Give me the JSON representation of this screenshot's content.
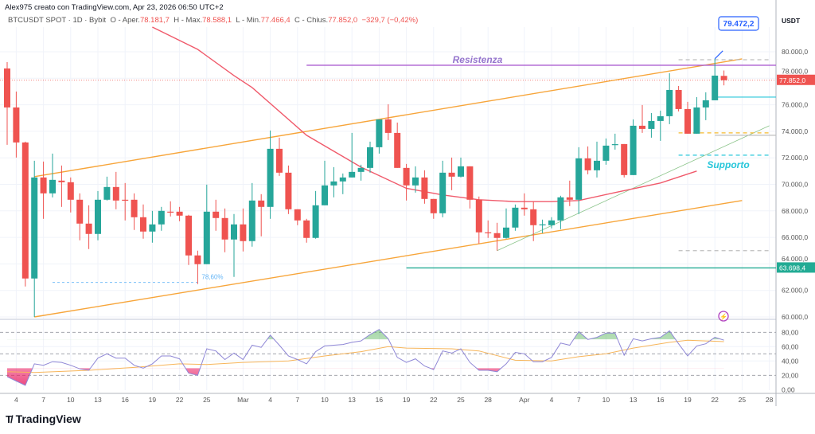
{
  "header": {
    "credit": "Alex975 creato con TradingView.com, Apr 23, 2026 06:50 UTC+2",
    "symbol": "BTCUSDT SPOT · 1D · Bybit",
    "open_label": "O - Aper.",
    "open": "78.181,7",
    "high_label": "H - Max.",
    "high": "78.588,1",
    "low_label": "L - Min.",
    "low": "77.466,4",
    "close_label": "C - Chius.",
    "close": "77.852,0",
    "change": "−329,7 (−0,42%)"
  },
  "logo": {
    "mark": "TV",
    "text": "TradingView"
  },
  "colors": {
    "up": "#26a69a",
    "down": "#ef5350",
    "ma": "#f05a6b",
    "channel": "#f7a53a",
    "resistance": "#ab5cd0",
    "support_text": "#26c6da",
    "support_line": "#22ab94",
    "rsi": "#8f87d6",
    "rsi_ma": "#f7b55a",
    "fib": "#64b5f6"
  },
  "chart_data": {
    "type": "candlestick",
    "currency": "USDT",
    "ylim": [
      59000,
      82500
    ],
    "y_ticks": [
      "80.000,0",
      "78.000,0",
      "76.000,0",
      "74.000,0",
      "72.000,0",
      "70.000,0",
      "68.000,0",
      "66.000,0",
      "64.000,0",
      "62.000,0",
      "60.000,0"
    ],
    "y_tick_values": [
      80000,
      78000,
      76000,
      74000,
      72000,
      70000,
      68000,
      66000,
      64000,
      62000,
      60000
    ],
    "x_ticks": [
      {
        "date": "2026-02-04",
        "label": "4"
      },
      {
        "date": "2026-02-07",
        "label": "7"
      },
      {
        "date": "2026-02-10",
        "label": "10"
      },
      {
        "date": "2026-02-13",
        "label": "13"
      },
      {
        "date": "2026-02-16",
        "label": "16"
      },
      {
        "date": "2026-02-19",
        "label": "19"
      },
      {
        "date": "2026-02-22",
        "label": "22"
      },
      {
        "date": "2026-02-25",
        "label": "25"
      },
      {
        "date": "2026-03-01",
        "label": "Mar"
      },
      {
        "date": "2026-03-04",
        "label": "4"
      },
      {
        "date": "2026-03-07",
        "label": "7"
      },
      {
        "date": "2026-03-10",
        "label": "10"
      },
      {
        "date": "2026-03-13",
        "label": "13"
      },
      {
        "date": "2026-03-16",
        "label": "16"
      },
      {
        "date": "2026-03-19",
        "label": "19"
      },
      {
        "date": "2026-03-22",
        "label": "22"
      },
      {
        "date": "2026-03-25",
        "label": "25"
      },
      {
        "date": "2026-03-28",
        "label": "28"
      },
      {
        "date": "2026-04-01",
        "label": "Apr"
      },
      {
        "date": "2026-04-04",
        "label": "4"
      },
      {
        "date": "2026-04-07",
        "label": "7"
      },
      {
        "date": "2026-04-10",
        "label": "10"
      },
      {
        "date": "2026-04-13",
        "label": "13"
      },
      {
        "date": "2026-04-16",
        "label": "16"
      },
      {
        "date": "2026-04-19",
        "label": "19"
      },
      {
        "date": "2026-04-22",
        "label": "22"
      },
      {
        "date": "2026-04-25",
        "label": "25"
      },
      {
        "date": "2026-04-28",
        "label": "28"
      }
    ],
    "candles_columns": [
      "date",
      "open",
      "high",
      "low",
      "close"
    ],
    "candles": [
      [
        "2026-02-03",
        78740,
        79220,
        72980,
        75800
      ],
      [
        "2026-02-04",
        75800,
        77000,
        72020,
        73160
      ],
      [
        "2026-02-05",
        73160,
        73220,
        62300,
        62900
      ],
      [
        "2026-02-06",
        62900,
        71780,
        60000,
        70520
      ],
      [
        "2026-02-07",
        70520,
        71720,
        67400,
        69320
      ],
      [
        "2026-02-08",
        69320,
        72320,
        69020,
        70340
      ],
      [
        "2026-02-09",
        70280,
        71420,
        68300,
        70160
      ],
      [
        "2026-02-10",
        70160,
        70520,
        67880,
        68840
      ],
      [
        "2026-02-11",
        68840,
        69320,
        65780,
        67040
      ],
      [
        "2026-02-12",
        67040,
        68420,
        65120,
        66260
      ],
      [
        "2026-02-13",
        66260,
        69500,
        65780,
        68840
      ],
      [
        "2026-02-14",
        68840,
        70580,
        68780,
        69800
      ],
      [
        "2026-02-15",
        69800,
        70940,
        68120,
        68780
      ],
      [
        "2026-02-16",
        68840,
        70100,
        67280,
        68800
      ],
      [
        "2026-02-17",
        68840,
        69320,
        66560,
        67520
      ],
      [
        "2026-02-18",
        67520,
        68480,
        65900,
        66440
      ],
      [
        "2026-02-19",
        66440,
        68000,
        65600,
        66980
      ],
      [
        "2026-02-20",
        66980,
        68300,
        66500,
        68000
      ],
      [
        "2026-02-21",
        67940,
        68720,
        67580,
        67900
      ],
      [
        "2026-02-22",
        67940,
        68300,
        67220,
        67640
      ],
      [
        "2026-02-23",
        67640,
        67700,
        63920,
        64640
      ],
      [
        "2026-02-24",
        64640,
        65000,
        62480,
        63980
      ],
      [
        "2026-02-25",
        63980,
        69980,
        63980,
        67940
      ],
      [
        "2026-02-26",
        67940,
        68840,
        66500,
        67460
      ],
      [
        "2026-02-27",
        67460,
        68180,
        64880,
        65840
      ],
      [
        "2026-02-28",
        65840,
        67760,
        63020,
        66980
      ],
      [
        "2026-03-01",
        66980,
        68180,
        64940,
        65720
      ],
      [
        "2026-03-02",
        65720,
        70100,
        65300,
        68780
      ],
      [
        "2026-03-03",
        68780,
        69260,
        66080,
        68300
      ],
      [
        "2026-03-04",
        68300,
        74060,
        67400,
        72680
      ],
      [
        "2026-03-05",
        72680,
        73520,
        70640,
        70880
      ],
      [
        "2026-03-06",
        70880,
        71420,
        67760,
        68120
      ],
      [
        "2026-03-07",
        68120,
        68120,
        66920,
        67280
      ],
      [
        "2026-03-08",
        67280,
        67400,
        65600,
        65960
      ],
      [
        "2026-03-09",
        65960,
        69500,
        65900,
        68420
      ],
      [
        "2026-03-10",
        68420,
        71780,
        68420,
        69920
      ],
      [
        "2026-03-11",
        69920,
        71300,
        69020,
        70220
      ],
      [
        "2026-03-12",
        70220,
        70820,
        69260,
        70520
      ],
      [
        "2026-03-13",
        70520,
        73880,
        70520,
        70940
      ],
      [
        "2026-03-14",
        70940,
        71480,
        70280,
        71240
      ],
      [
        "2026-03-15",
        71240,
        73220,
        70880,
        72800
      ],
      [
        "2026-03-16",
        72800,
        74900,
        72320,
        74900
      ],
      [
        "2026-03-17",
        74900,
        76040,
        73340,
        73880
      ],
      [
        "2026-03-18",
        73880,
        74660,
        71240,
        71240
      ],
      [
        "2026-03-19",
        71240,
        71540,
        68780,
        69920
      ],
      [
        "2026-03-20",
        69920,
        71360,
        69380,
        70520
      ],
      [
        "2026-03-21",
        70520,
        71060,
        68540,
        68900
      ],
      [
        "2026-03-22",
        68900,
        68900,
        67400,
        67820
      ],
      [
        "2026-03-23",
        67820,
        71780,
        67520,
        70880
      ],
      [
        "2026-03-24",
        70880,
        72020,
        69560,
        70580
      ],
      [
        "2026-03-25",
        70580,
        72020,
        70520,
        71360
      ],
      [
        "2026-03-26",
        71360,
        71360,
        68180,
        68840
      ],
      [
        "2026-03-27",
        68840,
        69080,
        65540,
        66380
      ],
      [
        "2026-03-28",
        66380,
        67280,
        65960,
        66350
      ],
      [
        "2026-03-29",
        66320,
        67100,
        65000,
        65960
      ],
      [
        "2026-03-30",
        65960,
        68180,
        65900,
        66740
      ],
      [
        "2026-03-31",
        66740,
        68480,
        66500,
        68240
      ],
      [
        "2026-04-01",
        68240,
        69320,
        67640,
        68120
      ],
      [
        "2026-04-02",
        68120,
        68720,
        65720,
        66920
      ],
      [
        "2026-04-03",
        66920,
        67340,
        66320,
        66980
      ],
      [
        "2026-04-04",
        66920,
        67520,
        66680,
        67280
      ],
      [
        "2026-04-05",
        67280,
        69140,
        66620,
        69020
      ],
      [
        "2026-04-06",
        69020,
        70280,
        68360,
        68840
      ],
      [
        "2026-04-07",
        68840,
        72800,
        67760,
        71960
      ],
      [
        "2026-04-08",
        71960,
        72860,
        70760,
        71060
      ],
      [
        "2026-04-09",
        71060,
        73220,
        70520,
        71780
      ],
      [
        "2026-04-10",
        71780,
        73460,
        71480,
        72920
      ],
      [
        "2026-04-11",
        72980,
        73820,
        72620,
        73030
      ],
      [
        "2026-04-12",
        73040,
        73040,
        70520,
        70700
      ],
      [
        "2026-04-13",
        70700,
        74900,
        70700,
        74420
      ],
      [
        "2026-04-14",
        74420,
        75980,
        73880,
        74180
      ],
      [
        "2026-04-15",
        74180,
        75380,
        73520,
        74780
      ],
      [
        "2026-04-16",
        74780,
        75560,
        73280,
        75140
      ],
      [
        "2026-04-17",
        75140,
        78380,
        74540,
        77120
      ],
      [
        "2026-04-18",
        77120,
        77420,
        75500,
        75680
      ],
      [
        "2026-04-19",
        75680,
        76220,
        73820,
        73820
      ],
      [
        "2026-04-20",
        73820,
        76580,
        73820,
        75800
      ],
      [
        "2026-04-21",
        75800,
        76940,
        74840,
        76340
      ],
      [
        "2026-04-22",
        76340,
        79472,
        76340,
        78200
      ],
      [
        "2026-04-23",
        78181.7,
        78588.1,
        77466.4,
        77852.0
      ]
    ],
    "moving_average": [
      [
        "2026-02-19",
        82200
      ],
      [
        "2026-02-24",
        80180
      ],
      [
        "2026-02-28",
        78200
      ],
      [
        "2026-03-02",
        77300
      ],
      [
        "2026-03-08",
        73700
      ],
      [
        "2026-03-14",
        71300
      ],
      [
        "2026-03-19",
        69700
      ],
      [
        "2026-03-23",
        69200
      ],
      [
        "2026-03-27",
        68840
      ],
      [
        "2026-03-31",
        68700
      ],
      [
        "2026-04-04",
        68700
      ],
      [
        "2026-04-07",
        68780
      ],
      [
        "2026-04-11",
        69380
      ],
      [
        "2026-04-16",
        70100
      ],
      [
        "2026-04-20",
        71000
      ]
    ],
    "current_price": {
      "value": 77852.0,
      "label": "77.852,0"
    },
    "high_callout": {
      "value": 79472.2,
      "date": "2026-04-22",
      "label": "79.472,2"
    },
    "drawings": {
      "channel_upper": [
        [
          "2026-02-06",
          70580
        ],
        [
          "2026-04-25",
          79460
        ]
      ],
      "channel_lower": [
        [
          "2026-02-06",
          60000
        ],
        [
          "2026-04-25",
          68780
        ]
      ],
      "resistance": {
        "value": 78980,
        "from": "2026-03-08",
        "label": "Resistenza"
      },
      "support_line": {
        "value": 63698.4,
        "from": "2026-03-19",
        "label": "63.698,4"
      },
      "support_label": "Supporto",
      "trendline": [
        [
          "2026-03-29",
          65000
        ],
        [
          "2026-04-28",
          74420
        ]
      ],
      "dashed_levels": [
        {
          "value": 79400,
          "from": "2026-04-18",
          "to": "2026-04-28",
          "color": "#bdbdbd"
        },
        {
          "value": 73880,
          "from": "2026-04-18",
          "to": "2026-04-28",
          "color": "#f5b82e"
        },
        {
          "value": 72200,
          "from": "2026-04-18",
          "to": "2026-04-28",
          "color": "#26c6da"
        },
        {
          "value": 65000,
          "from": "2026-04-18",
          "to": "2026-04-28",
          "color": "#bdbdbd"
        }
      ],
      "short_levels": [
        {
          "value": 76580,
          "from": "2026-04-22",
          "color": "#26c6da"
        },
        {
          "value": 73700,
          "from": "2026-04-22",
          "color": "#bdbdbd"
        }
      ],
      "fib": {
        "value": 62600,
        "from": "2026-02-08",
        "to": "2026-02-24",
        "label": "78,60%"
      }
    },
    "rsi": {
      "levels": [
        80,
        50,
        20
      ],
      "grid": [
        60,
        40
      ],
      "y_ticks": [
        "80,00",
        "60,00",
        "40,00",
        "20,00",
        "0,00"
      ],
      "y_tick_values": [
        80,
        60,
        40,
        20,
        0
      ],
      "fill_thresholds": [
        70,
        30
      ],
      "values": [
        18,
        12,
        6,
        36,
        34,
        39,
        38,
        34,
        29,
        27,
        44,
        50,
        44,
        44,
        34,
        30,
        36,
        47,
        47,
        43,
        23,
        20,
        57,
        54,
        42,
        51,
        42,
        62,
        59,
        76,
        62,
        47,
        42,
        36,
        53,
        61,
        62,
        63,
        66,
        68,
        77,
        84,
        71,
        45,
        38,
        43,
        33,
        28,
        54,
        51,
        57,
        38,
        27,
        27,
        25,
        36,
        52,
        50,
        39,
        39,
        45,
        65,
        62,
        81,
        70,
        73,
        79,
        79,
        48,
        71,
        68,
        71,
        73,
        82,
        64,
        47,
        61,
        64,
        73,
        69
      ],
      "ma": [
        [
          "2026-02-03",
          25
        ],
        [
          "2026-02-06",
          24
        ],
        [
          "2026-02-12",
          27
        ],
        [
          "2026-02-17",
          31
        ],
        [
          "2026-02-22",
          36
        ],
        [
          "2026-02-25",
          35
        ],
        [
          "2026-03-01",
          38
        ],
        [
          "2026-03-06",
          40
        ],
        [
          "2026-03-10",
          47
        ],
        [
          "2026-03-14",
          53
        ],
        [
          "2026-03-17",
          60
        ],
        [
          "2026-03-19",
          58
        ],
        [
          "2026-03-24",
          57
        ],
        [
          "2026-03-27",
          54
        ],
        [
          "2026-03-31",
          41
        ],
        [
          "2026-04-04",
          40
        ],
        [
          "2026-04-07",
          46
        ],
        [
          "2026-04-10",
          50
        ],
        [
          "2026-04-13",
          58
        ],
        [
          "2026-04-17",
          66
        ],
        [
          "2026-04-19",
          69
        ],
        [
          "2026-04-21",
          68
        ],
        [
          "2026-04-23",
          67
        ]
      ]
    }
  }
}
